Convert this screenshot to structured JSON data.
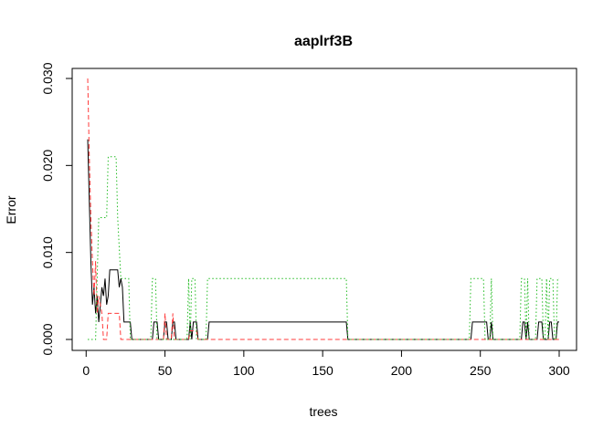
{
  "chart_data": {
    "type": "line",
    "title": "aaplrf3B",
    "xlabel": "trees",
    "ylabel": "Error",
    "xlim": [
      1,
      300
    ],
    "ylim": [
      0,
      0.03
    ],
    "x_ticks": [
      0,
      50,
      100,
      150,
      200,
      250,
      300
    ],
    "x_tick_labels": [
      "0",
      "50",
      "100",
      "150",
      "200",
      "250",
      "300"
    ],
    "y_ticks": [
      0.0,
      0.01,
      0.02,
      0.03
    ],
    "y_tick_labels": [
      "0.000",
      "0.010",
      "0.020",
      "0.030"
    ],
    "grid": false,
    "legend": "none",
    "series": [
      {
        "color": "#000000",
        "dash": "solid",
        "points": [
          [
            1,
            0.023
          ],
          [
            2,
            0.016
          ],
          [
            3,
            0.009
          ],
          [
            4,
            0.004
          ],
          [
            5,
            0.006
          ],
          [
            6,
            0.003
          ],
          [
            7,
            0.005
          ],
          [
            8,
            0.002
          ],
          [
            9,
            0.004
          ],
          [
            10,
            0.006
          ],
          [
            11,
            0.005
          ],
          [
            12,
            0.007
          ],
          [
            13,
            0.004
          ],
          [
            14,
            0.005
          ],
          [
            15,
            0.008
          ],
          [
            20,
            0.008
          ],
          [
            21,
            0.006
          ],
          [
            22,
            0.007
          ],
          [
            23,
            0.006
          ],
          [
            24,
            0.002
          ],
          [
            28,
            0.002
          ],
          [
            29,
            0.0
          ],
          [
            42,
            0.0
          ],
          [
            43,
            0.002
          ],
          [
            45,
            0.002
          ],
          [
            46,
            0.0
          ],
          [
            49,
            0.0
          ],
          [
            50,
            0.002
          ],
          [
            51,
            0.002
          ],
          [
            52,
            0.0
          ],
          [
            54,
            0.0
          ],
          [
            55,
            0.002
          ],
          [
            56,
            0.002
          ],
          [
            57,
            0.0
          ],
          [
            65,
            0.0
          ],
          [
            66,
            0.002
          ],
          [
            67,
            0.0
          ],
          [
            68,
            0.002
          ],
          [
            70,
            0.002
          ],
          [
            71,
            0.0
          ],
          [
            77,
            0.0
          ],
          [
            78,
            0.002
          ],
          [
            165,
            0.002
          ],
          [
            166,
            0.0
          ],
          [
            244,
            0.0
          ],
          [
            245,
            0.002
          ],
          [
            254,
            0.002
          ],
          [
            255,
            0.0
          ],
          [
            256,
            0.0
          ],
          [
            257,
            0.002
          ],
          [
            258,
            0.0
          ],
          [
            276,
            0.0
          ],
          [
            277,
            0.002
          ],
          [
            278,
            0.002
          ],
          [
            279,
            0.0
          ],
          [
            280,
            0.002
          ],
          [
            281,
            0.0
          ],
          [
            286,
            0.0
          ],
          [
            287,
            0.002
          ],
          [
            289,
            0.002
          ],
          [
            290,
            0.0
          ],
          [
            293,
            0.0
          ],
          [
            294,
            0.002
          ],
          [
            295,
            0.002
          ],
          [
            296,
            0.0
          ],
          [
            298,
            0.0
          ],
          [
            299,
            0.002
          ],
          [
            300,
            0.002
          ]
        ]
      },
      {
        "color": "#ff3b3b",
        "dash": "dashed",
        "points": [
          [
            1,
            0.03
          ],
          [
            2,
            0.021
          ],
          [
            3,
            0.014
          ],
          [
            4,
            0.009
          ],
          [
            5,
            0.005
          ],
          [
            6,
            0.009
          ],
          [
            7,
            0.003
          ],
          [
            8,
            0.005
          ],
          [
            9,
            0.004
          ],
          [
            10,
            0.003
          ],
          [
            11,
            0.0
          ],
          [
            12,
            0.0
          ],
          [
            13,
            0.0
          ],
          [
            14,
            0.003
          ],
          [
            21,
            0.003
          ],
          [
            22,
            0.0
          ],
          [
            49,
            0.0
          ],
          [
            50,
            0.003
          ],
          [
            51,
            0.0
          ],
          [
            54,
            0.0
          ],
          [
            55,
            0.003
          ],
          [
            56,
            0.0
          ],
          [
            65,
            0.0
          ],
          [
            66,
            0.001
          ],
          [
            70,
            0.001
          ],
          [
            71,
            0.0
          ],
          [
            300,
            0.0
          ]
        ]
      },
      {
        "color": "#22bb22",
        "dash": "dotted",
        "points": [
          [
            1,
            0.0
          ],
          [
            6,
            0.0
          ],
          [
            7,
            0.007
          ],
          [
            8,
            0.014
          ],
          [
            13,
            0.014
          ],
          [
            14,
            0.021
          ],
          [
            19,
            0.021
          ],
          [
            20,
            0.014
          ],
          [
            22,
            0.007
          ],
          [
            27,
            0.007
          ],
          [
            28,
            0.0
          ],
          [
            41,
            0.0
          ],
          [
            42,
            0.007
          ],
          [
            44,
            0.007
          ],
          [
            45,
            0.0
          ],
          [
            64,
            0.0
          ],
          [
            65,
            0.007
          ],
          [
            66,
            0.0
          ],
          [
            67,
            0.007
          ],
          [
            69,
            0.007
          ],
          [
            70,
            0.0
          ],
          [
            76,
            0.0
          ],
          [
            77,
            0.007
          ],
          [
            165,
            0.007
          ],
          [
            166,
            0.0
          ],
          [
            243,
            0.0
          ],
          [
            244,
            0.007
          ],
          [
            252,
            0.007
          ],
          [
            253,
            0.0
          ],
          [
            256,
            0.0
          ],
          [
            257,
            0.007
          ],
          [
            258,
            0.0
          ],
          [
            275,
            0.0
          ],
          [
            276,
            0.007
          ],
          [
            278,
            0.007
          ],
          [
            279,
            0.0
          ],
          [
            280,
            0.007
          ],
          [
            281,
            0.0
          ],
          [
            285,
            0.0
          ],
          [
            286,
            0.007
          ],
          [
            289,
            0.007
          ],
          [
            290,
            0.0
          ],
          [
            291,
            0.0
          ],
          [
            292,
            0.007
          ],
          [
            293,
            0.0
          ],
          [
            294,
            0.007
          ],
          [
            296,
            0.007
          ],
          [
            297,
            0.0
          ],
          [
            298,
            0.0
          ],
          [
            299,
            0.007
          ],
          [
            300,
            0.007
          ]
        ]
      }
    ]
  }
}
